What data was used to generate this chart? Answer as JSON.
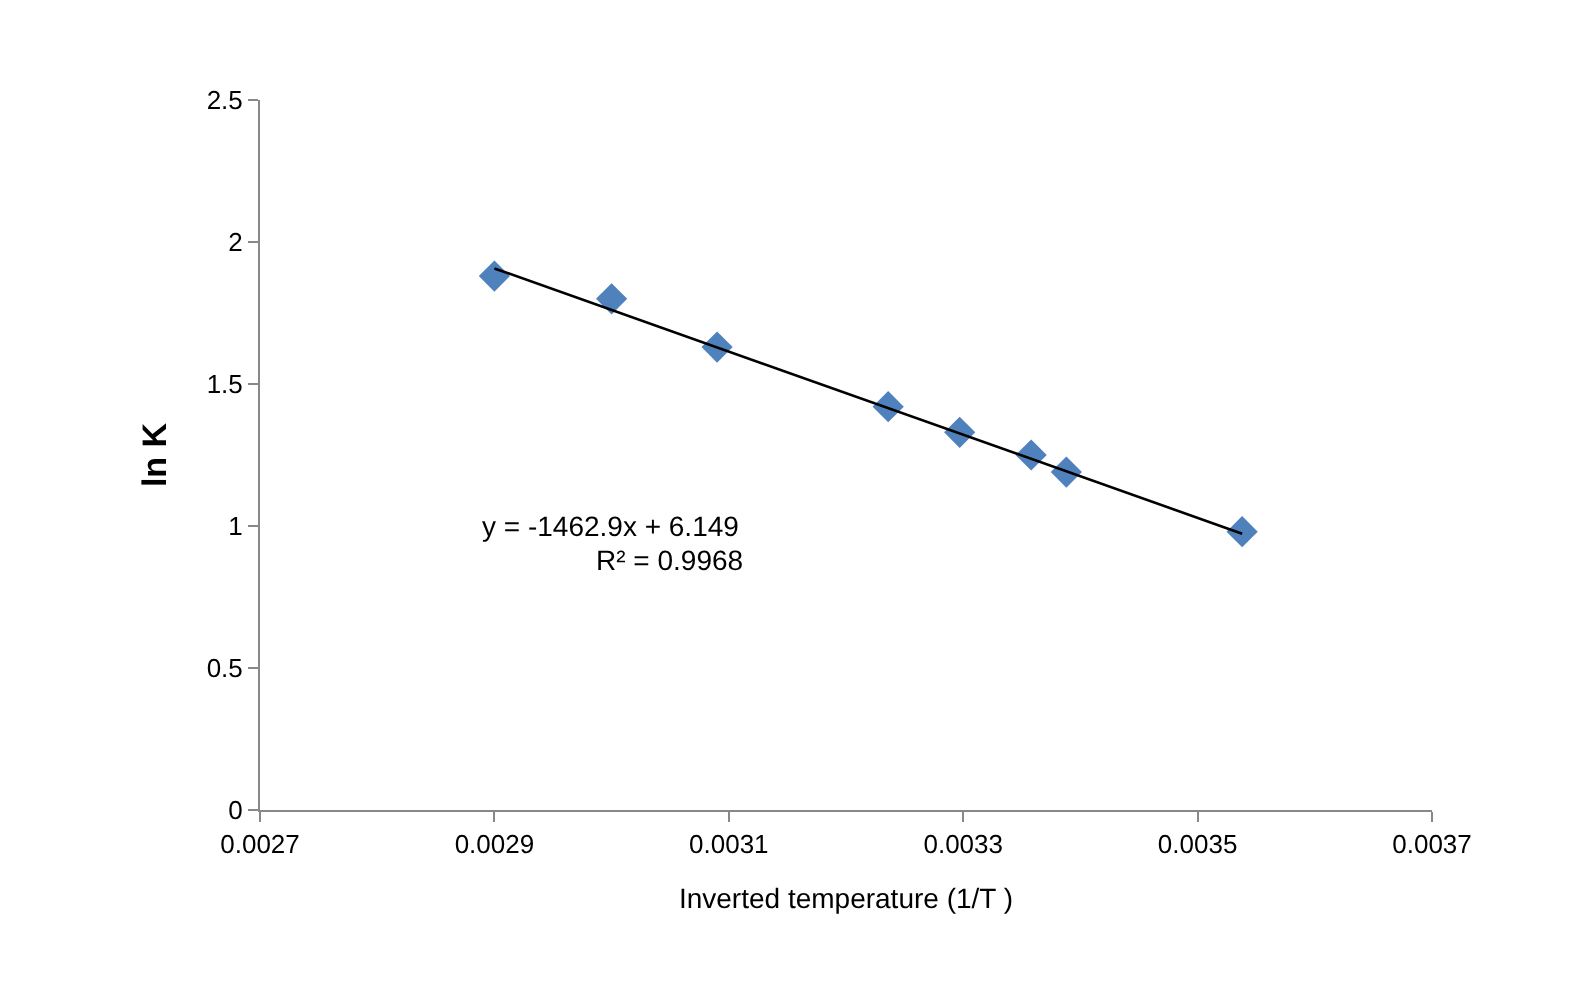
{
  "chart_data": {
    "type": "scatter",
    "xlabel": "Inverted temperature (1/T )",
    "ylabel": "ln K",
    "series": [
      {
        "color": "#4f81bd",
        "marker": "diamond",
        "x": [
          0.0029,
          0.003,
          0.00309,
          0.003236,
          0.003297,
          0.003358,
          0.003388,
          0.003538
        ],
        "values": [
          1.88,
          1.8,
          1.63,
          1.42,
          1.33,
          1.25,
          1.19,
          0.98
        ]
      },
      {
        "type": "line",
        "color": "#000000",
        "marker": "none",
        "x": [
          0.0029,
          0.003538
        ],
        "values": [
          1.907,
          0.973
        ]
      }
    ],
    "annotations": [
      "y = -1462.9x + 6.149",
      "R² = 0.9968"
    ],
    "xlim": [
      0.0027,
      0.0037
    ],
    "xticks": [
      0.0027,
      0.0029,
      0.0031,
      0.0033,
      0.0035,
      0.0037
    ],
    "ylim": [
      0,
      2.5
    ],
    "yticks": [
      0,
      0.5,
      1,
      1.5,
      2,
      2.5
    ]
  }
}
